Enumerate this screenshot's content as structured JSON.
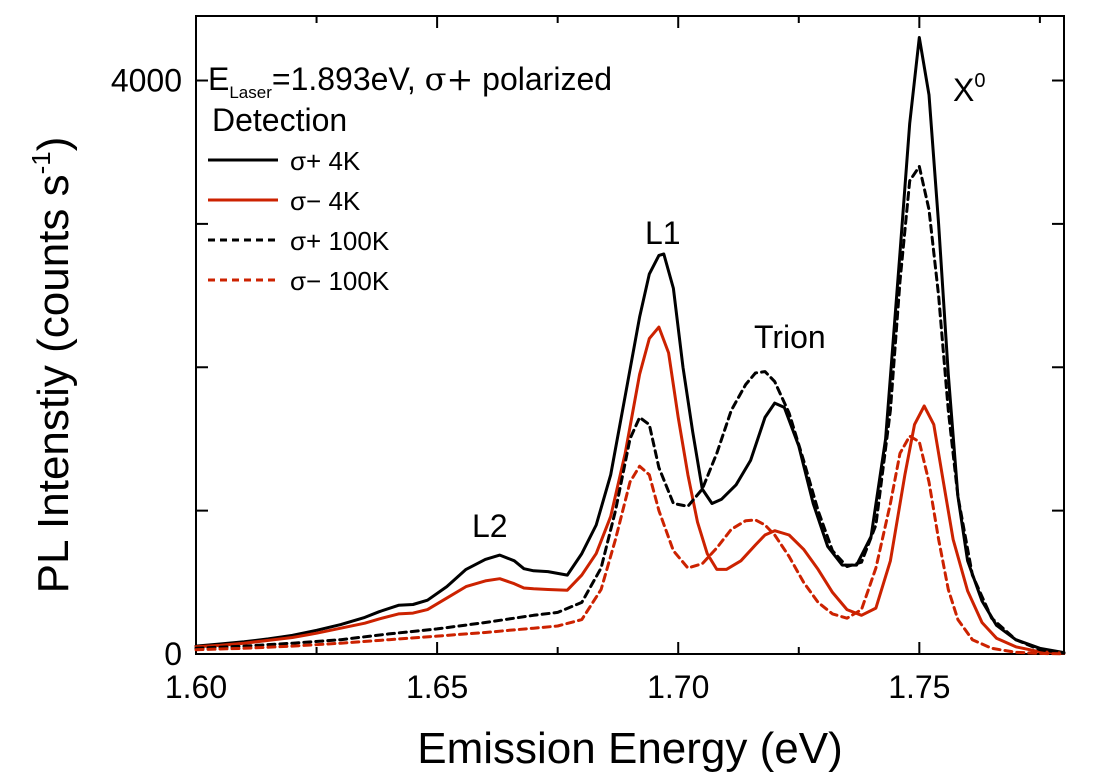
{
  "chart_data": {
    "type": "line",
    "xlabel": "Emission Energy (eV)",
    "ylabel": "PL Intenstiy (counts s",
    "ylabel_sup": "-1",
    "ylabel_close": ")",
    "xlim": [
      1.6,
      1.78
    ],
    "ylim": [
      0,
      4450
    ],
    "x_ticks": [
      1.6,
      1.65,
      1.7,
      1.75
    ],
    "x_tick_labels": [
      "1.60",
      "1.65",
      "1.70",
      "1.75"
    ],
    "x_minor_ticks": [
      1.625,
      1.675,
      1.725,
      1.775
    ],
    "y_ticks": [
      0,
      1000,
      2000,
      3000,
      4000
    ],
    "y_tick_labels": [
      "0",
      "",
      "",
      "",
      "4000"
    ],
    "annotations": {
      "laser_prefix": "E",
      "laser_sub": "Laser",
      "laser_value": "=1.893eV, ",
      "laser_sigma": "σ+",
      "laser_suffix": " polarized",
      "detection": "Detection",
      "L1": "L1",
      "L2": "L2",
      "trion": "Trion",
      "x0": "X",
      "x0_sup": "0"
    },
    "legend_position": "top-left",
    "series": [
      {
        "id": "sp4",
        "name": "σ+  4K",
        "color": "#000000",
        "dash": "solid",
        "x": [
          1.6,
          1.605,
          1.61,
          1.615,
          1.62,
          1.625,
          1.63,
          1.635,
          1.638,
          1.642,
          1.645,
          1.648,
          1.652,
          1.656,
          1.66,
          1.663,
          1.666,
          1.668,
          1.67,
          1.673,
          1.677,
          1.68,
          1.683,
          1.686,
          1.689,
          1.692,
          1.694,
          1.696,
          1.697,
          1.699,
          1.701,
          1.703,
          1.705,
          1.707,
          1.709,
          1.712,
          1.715,
          1.718,
          1.72,
          1.722,
          1.725,
          1.728,
          1.731,
          1.734,
          1.737,
          1.74,
          1.743,
          1.746,
          1.748,
          1.75,
          1.752,
          1.754,
          1.756,
          1.758,
          1.76,
          1.763,
          1.766,
          1.77,
          1.775,
          1.78
        ],
        "y": [
          55,
          70,
          85,
          105,
          130,
          165,
          205,
          255,
          295,
          340,
          345,
          375,
          470,
          590,
          660,
          690,
          650,
          595,
          580,
          575,
          550,
          700,
          900,
          1250,
          1800,
          2350,
          2650,
          2780,
          2790,
          2550,
          2000,
          1550,
          1150,
          1050,
          1080,
          1180,
          1350,
          1650,
          1750,
          1720,
          1450,
          1050,
          750,
          620,
          620,
          820,
          1500,
          2800,
          3700,
          4300,
          3900,
          3000,
          1950,
          1100,
          650,
          370,
          200,
          100,
          40,
          10
        ]
      },
      {
        "id": "sm4",
        "name": "σ−  4K",
        "color": "#cc2200",
        "dash": "solid",
        "x": [
          1.6,
          1.605,
          1.61,
          1.615,
          1.62,
          1.625,
          1.63,
          1.635,
          1.638,
          1.642,
          1.645,
          1.648,
          1.652,
          1.656,
          1.66,
          1.663,
          1.666,
          1.668,
          1.67,
          1.673,
          1.677,
          1.68,
          1.683,
          1.686,
          1.689,
          1.692,
          1.694,
          1.696,
          1.698,
          1.7,
          1.702,
          1.704,
          1.706,
          1.708,
          1.71,
          1.713,
          1.716,
          1.718,
          1.72,
          1.723,
          1.726,
          1.729,
          1.732,
          1.735,
          1.738,
          1.741,
          1.744,
          1.747,
          1.749,
          1.751,
          1.753,
          1.755,
          1.757,
          1.76,
          1.763,
          1.766,
          1.77,
          1.775,
          1.78
        ],
        "y": [
          50,
          60,
          75,
          95,
          115,
          145,
          180,
          215,
          245,
          280,
          285,
          310,
          390,
          470,
          510,
          525,
          490,
          460,
          455,
          450,
          445,
          550,
          700,
          960,
          1400,
          1950,
          2200,
          2280,
          2100,
          1650,
          1250,
          920,
          700,
          590,
          590,
          650,
          760,
          830,
          860,
          830,
          730,
          590,
          430,
          310,
          270,
          320,
          650,
          1250,
          1600,
          1730,
          1600,
          1200,
          800,
          440,
          220,
          110,
          50,
          15,
          5
        ]
      },
      {
        "id": "sp100",
        "name": "σ+  100K",
        "color": "#000000",
        "dash": "dashed",
        "x": [
          1.6,
          1.61,
          1.62,
          1.63,
          1.64,
          1.65,
          1.66,
          1.665,
          1.67,
          1.675,
          1.68,
          1.684,
          1.687,
          1.69,
          1.692,
          1.694,
          1.696,
          1.699,
          1.702,
          1.705,
          1.708,
          1.711,
          1.714,
          1.716,
          1.718,
          1.72,
          1.723,
          1.726,
          1.729,
          1.732,
          1.735,
          1.738,
          1.741,
          1.744,
          1.746,
          1.748,
          1.75,
          1.752,
          1.754,
          1.756,
          1.758,
          1.761,
          1.765,
          1.77,
          1.775,
          1.78
        ],
        "y": [
          40,
          55,
          75,
          100,
          140,
          175,
          220,
          245,
          270,
          290,
          360,
          600,
          1000,
          1500,
          1650,
          1600,
          1300,
          1050,
          1030,
          1150,
          1400,
          1700,
          1880,
          1960,
          1970,
          1900,
          1680,
          1350,
          1000,
          720,
          610,
          640,
          900,
          1700,
          2600,
          3300,
          3400,
          3100,
          2500,
          1700,
          1100,
          550,
          250,
          100,
          30,
          8
        ]
      },
      {
        "id": "sm100",
        "name": "σ−  100K",
        "color": "#cc2200",
        "dash": "dashed",
        "x": [
          1.6,
          1.61,
          1.62,
          1.63,
          1.64,
          1.65,
          1.66,
          1.665,
          1.67,
          1.675,
          1.68,
          1.684,
          1.687,
          1.69,
          1.692,
          1.694,
          1.696,
          1.699,
          1.702,
          1.705,
          1.708,
          1.711,
          1.714,
          1.716,
          1.718,
          1.72,
          1.723,
          1.726,
          1.729,
          1.732,
          1.735,
          1.738,
          1.741,
          1.744,
          1.746,
          1.748,
          1.75,
          1.752,
          1.754,
          1.756,
          1.758,
          1.761,
          1.765,
          1.77,
          1.775,
          1.78
        ],
        "y": [
          30,
          40,
          55,
          75,
          100,
          125,
          150,
          165,
          180,
          195,
          240,
          450,
          800,
          1200,
          1310,
          1250,
          1000,
          720,
          600,
          630,
          740,
          870,
          930,
          935,
          900,
          830,
          680,
          500,
          360,
          280,
          250,
          310,
          600,
          1050,
          1400,
          1520,
          1480,
          1200,
          800,
          450,
          240,
          100,
          40,
          12,
          4,
          1
        ]
      }
    ]
  }
}
